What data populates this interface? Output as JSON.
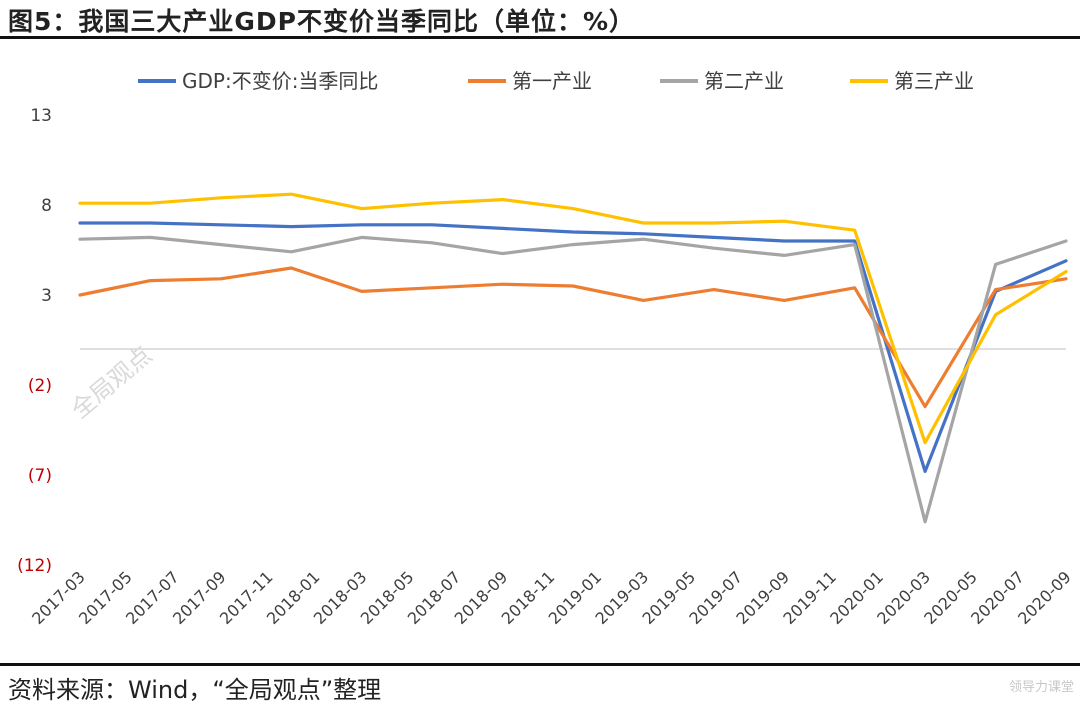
{
  "title": "图5：我国三大产业GDP不变价当季同比（单位：%）",
  "source": "资料来源：Wind，“全局观点”整理",
  "watermark": "全局观点",
  "corner_watermark": "领导力课堂",
  "colors": {
    "gdp": "#4472C4",
    "primary": "#ED7D31",
    "secondary": "#A5A5A5",
    "tertiary": "#FFC000",
    "negative_tick": "#C00000"
  },
  "chart_data": {
    "type": "line",
    "x": [
      "2017-03",
      "2017-06",
      "2017-09",
      "2017-12",
      "2018-03",
      "2018-06",
      "2018-09",
      "2018-12",
      "2019-03",
      "2019-06",
      "2019-09",
      "2019-12",
      "2020-03",
      "2020-06",
      "2020-09"
    ],
    "x_tick_labels": [
      "2017-03",
      "2017-05",
      "2017-07",
      "2017-09",
      "2017-11",
      "2018-01",
      "2018-03",
      "2018-05",
      "2018-07",
      "2018-09",
      "2018-11",
      "2019-01",
      "2019-03",
      "2019-05",
      "2019-07",
      "2019-09",
      "2019-11",
      "2020-01",
      "2020-03",
      "2020-05",
      "2020-07",
      "2020-09"
    ],
    "y_ticks": [
      {
        "value": 13,
        "label": "13"
      },
      {
        "value": 8,
        "label": "8"
      },
      {
        "value": 3,
        "label": "3"
      },
      {
        "value": -2,
        "label": "(2)"
      },
      {
        "value": -7,
        "label": "(7)"
      },
      {
        "value": -12,
        "label": "(12)"
      }
    ],
    "ylim": [
      -12,
      13
    ],
    "legend_position": "top",
    "series": [
      {
        "name": "GDP:不变价:当季同比",
        "color_key": "gdp",
        "values": [
          7.0,
          7.0,
          6.9,
          6.8,
          6.9,
          6.9,
          6.7,
          6.5,
          6.4,
          6.2,
          6.0,
          6.0,
          -6.8,
          3.2,
          4.9
        ]
      },
      {
        "name": "第一产业",
        "color_key": "primary",
        "values": [
          3.0,
          3.8,
          3.9,
          4.5,
          3.2,
          3.4,
          3.6,
          3.5,
          2.7,
          3.3,
          2.7,
          3.4,
          -3.2,
          3.3,
          3.9
        ]
      },
      {
        "name": "第二产业",
        "color_key": "secondary",
        "values": [
          6.1,
          6.2,
          5.8,
          5.4,
          6.2,
          5.9,
          5.3,
          5.8,
          6.1,
          5.6,
          5.2,
          5.8,
          -9.6,
          4.7,
          6.0
        ]
      },
      {
        "name": "第三产业",
        "color_key": "tertiary",
        "values": [
          8.1,
          8.1,
          8.4,
          8.6,
          7.8,
          8.1,
          8.3,
          7.8,
          7.0,
          7.0,
          7.1,
          6.6,
          -5.2,
          1.9,
          4.3
        ]
      }
    ]
  }
}
